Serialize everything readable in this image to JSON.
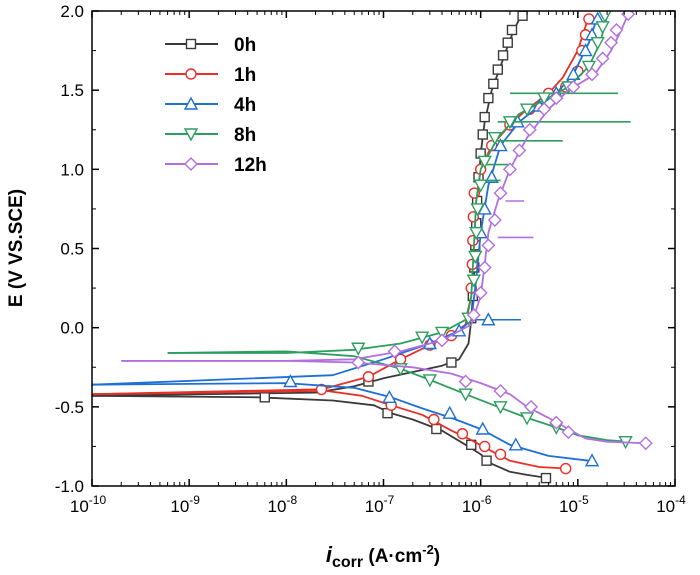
{
  "chart_data": {
    "type": "line",
    "xscale": "log",
    "xlim": [
      1e-10,
      0.0001
    ],
    "ylim": [
      -1.0,
      2.0
    ],
    "xlabel": {
      "italic": "i",
      "sub": "corr",
      "rest": " (A·cm",
      "sup": "-2",
      "end": ")"
    },
    "ylabel": "E (V VS.SCE)",
    "x_ticks": [
      {
        "value": 1e-10,
        "base": "10",
        "exp": "-10"
      },
      {
        "value": 1e-09,
        "base": "10",
        "exp": "-9"
      },
      {
        "value": 1e-08,
        "base": "10",
        "exp": "-8"
      },
      {
        "value": 1e-07,
        "base": "10",
        "exp": "-7"
      },
      {
        "value": 1e-06,
        "base": "10",
        "exp": "-6"
      },
      {
        "value": 1e-05,
        "base": "10",
        "exp": "-5"
      },
      {
        "value": 0.0001,
        "base": "10",
        "exp": "-4"
      }
    ],
    "y_ticks": [
      {
        "value": -1.0,
        "label": "-1.0"
      },
      {
        "value": -0.5,
        "label": "-0.5"
      },
      {
        "value": 0.0,
        "label": "0.0"
      },
      {
        "value": 0.5,
        "label": "0.5"
      },
      {
        "value": 1.0,
        "label": "1.0"
      },
      {
        "value": 1.5,
        "label": "1.5"
      },
      {
        "value": 2.0,
        "label": "2.0"
      }
    ],
    "legend_position": "top-left",
    "series": [
      {
        "name": "0h",
        "color": "#3a3a3a",
        "marker": "square",
        "cathodic": [
          [
            1e-10,
            -0.43
          ],
          [
            5e-09,
            -0.44
          ],
          [
            3e-08,
            -0.46
          ],
          [
            8e-08,
            -0.49
          ],
          [
            1.2e-07,
            -0.54
          ],
          [
            2e-07,
            -0.58
          ],
          [
            4e-07,
            -0.65
          ],
          [
            7e-07,
            -0.74
          ],
          [
            1e-06,
            -0.8
          ],
          [
            1.3e-06,
            -0.86
          ],
          [
            2e-06,
            -0.91
          ],
          [
            3e-06,
            -0.93
          ],
          [
            5e-06,
            -0.95
          ]
        ],
        "anodic": [
          [
            1e-10,
            -0.43
          ],
          [
            2e-08,
            -0.41
          ],
          [
            5e-08,
            -0.37
          ],
          [
            1e-07,
            -0.32
          ],
          [
            2e-07,
            -0.28
          ],
          [
            4e-07,
            -0.24
          ],
          [
            6e-07,
            -0.2
          ],
          [
            7.5e-07,
            -0.1
          ],
          [
            8e-07,
            0.05
          ],
          [
            8.5e-07,
            0.3
          ],
          [
            9e-07,
            0.6
          ],
          [
            9.5e-07,
            0.9
          ],
          [
            1e-06,
            1.1
          ],
          [
            1.1e-06,
            1.3
          ],
          [
            1.3e-06,
            1.5
          ],
          [
            1.6e-06,
            1.65
          ],
          [
            1.9e-06,
            1.78
          ],
          [
            2.2e-06,
            1.88
          ],
          [
            2.6e-06,
            1.97
          ]
        ],
        "markers": [
          [
            6e-09,
            -0.44
          ],
          [
            1.1e-07,
            -0.54
          ],
          [
            3.5e-07,
            -0.64
          ],
          [
            8e-07,
            -0.74
          ],
          [
            1.15e-06,
            -0.84
          ],
          [
            4.7e-06,
            -0.95
          ],
          [
            7e-08,
            -0.34
          ],
          [
            5e-07,
            -0.22
          ],
          [
            8e-07,
            0.06
          ],
          [
            8.3e-07,
            0.2
          ],
          [
            8.6e-07,
            0.38
          ],
          [
            8.8e-07,
            0.52
          ],
          [
            9e-07,
            0.66
          ],
          [
            9.2e-07,
            0.8
          ],
          [
            9.5e-07,
            0.95
          ],
          [
            1e-06,
            1.1
          ],
          [
            1.05e-06,
            1.22
          ],
          [
            1.1e-06,
            1.33
          ],
          [
            1.2e-06,
            1.45
          ],
          [
            1.35e-06,
            1.54
          ],
          [
            1.5e-06,
            1.63
          ],
          [
            1.7e-06,
            1.72
          ],
          [
            1.9e-06,
            1.8
          ],
          [
            2.1e-06,
            1.88
          ],
          [
            2.7e-06,
            1.97
          ]
        ],
        "spikes": []
      },
      {
        "name": "1h",
        "color": "#e8302a",
        "marker": "circle",
        "cathodic": [
          [
            1e-10,
            -0.42
          ],
          [
            2e-08,
            -0.39
          ],
          [
            6e-08,
            -0.43
          ],
          [
            1.2e-07,
            -0.49
          ],
          [
            2.5e-07,
            -0.55
          ],
          [
            5e-07,
            -0.65
          ],
          [
            8e-07,
            -0.71
          ],
          [
            1.3e-06,
            -0.78
          ],
          [
            2e-06,
            -0.84
          ],
          [
            4e-06,
            -0.88
          ],
          [
            8e-06,
            -0.89
          ]
        ],
        "anodic": [
          [
            1e-10,
            -0.42
          ],
          [
            2e-08,
            -0.4
          ],
          [
            7e-08,
            -0.31
          ],
          [
            1.5e-07,
            -0.2
          ],
          [
            3e-07,
            -0.11
          ],
          [
            5e-07,
            -0.05
          ],
          [
            7e-07,
            0.02
          ],
          [
            8e-07,
            0.2
          ],
          [
            8.5e-07,
            0.5
          ],
          [
            9e-07,
            0.8
          ],
          [
            1e-06,
            1.0
          ],
          [
            1.3e-06,
            1.15
          ],
          [
            2e-06,
            1.28
          ],
          [
            3e-06,
            1.38
          ],
          [
            5e-06,
            1.48
          ],
          [
            7e-06,
            1.58
          ],
          [
            1e-05,
            1.75
          ],
          [
            1.3e-05,
            1.97
          ]
        ],
        "markers": [
          [
            2.3e-08,
            -0.39
          ],
          [
            1.2e-07,
            -0.49
          ],
          [
            3.3e-07,
            -0.58
          ],
          [
            6.5e-07,
            -0.67
          ],
          [
            1.1e-06,
            -0.75
          ],
          [
            1.6e-06,
            -0.8
          ],
          [
            7.5e-06,
            -0.89
          ],
          [
            7e-08,
            -0.31
          ],
          [
            1.5e-07,
            -0.2
          ],
          [
            3e-07,
            -0.11
          ],
          [
            5e-07,
            -0.05
          ],
          [
            8e-07,
            0.25
          ],
          [
            8.2e-07,
            0.4
          ],
          [
            8.3e-07,
            0.55
          ],
          [
            8.4e-07,
            0.7
          ],
          [
            8.6e-07,
            0.85
          ],
          [
            1e-06,
            1.0
          ],
          [
            1.3e-06,
            1.15
          ],
          [
            2e-06,
            1.28
          ],
          [
            3.2e-06,
            1.38
          ],
          [
            5e-06,
            1.48
          ],
          [
            7.5e-06,
            1.52
          ],
          [
            1e-05,
            1.62
          ],
          [
            1.1e-05,
            1.75
          ],
          [
            1.2e-05,
            1.85
          ],
          [
            1.3e-05,
            1.95
          ]
        ],
        "spikes": []
      },
      {
        "name": "4h",
        "color": "#1e6fd6",
        "marker": "triangle-up",
        "cathodic": [
          [
            1e-10,
            -0.36
          ],
          [
            1e-08,
            -0.35
          ],
          [
            5e-08,
            -0.38
          ],
          [
            1.2e-07,
            -0.44
          ],
          [
            2.5e-07,
            -0.51
          ],
          [
            5e-07,
            -0.57
          ],
          [
            1e-06,
            -0.64
          ],
          [
            2e-06,
            -0.74
          ],
          [
            5e-06,
            -0.81
          ],
          [
            1.3e-05,
            -0.84
          ]
        ],
        "anodic": [
          [
            1e-10,
            -0.36
          ],
          [
            3e-08,
            -0.3
          ],
          [
            1e-07,
            -0.2
          ],
          [
            3e-07,
            -0.1
          ],
          [
            6e-07,
            -0.02
          ],
          [
            8e-07,
            0.05
          ],
          [
            9e-07,
            0.3
          ],
          [
            1e-06,
            0.6
          ],
          [
            1.2e-06,
            0.9
          ],
          [
            1.6e-06,
            1.15
          ],
          [
            2.5e-06,
            1.3
          ],
          [
            4e-06,
            1.4
          ],
          [
            6e-06,
            1.48
          ],
          [
            9e-06,
            1.6
          ],
          [
            1.3e-05,
            1.8
          ],
          [
            1.6e-05,
            1.97
          ]
        ],
        "markers": [
          [
            1.1e-08,
            -0.34
          ],
          [
            1.15e-07,
            -0.44
          ],
          [
            4.8e-07,
            -0.54
          ],
          [
            1.05e-06,
            -0.64
          ],
          [
            2.3e-06,
            -0.74
          ],
          [
            1.4e-05,
            -0.84
          ],
          [
            3e-07,
            -0.1
          ],
          [
            6e-07,
            -0.02
          ],
          [
            1.2e-06,
            0.05
          ],
          [
            1e-06,
            0.6
          ],
          [
            1.1e-06,
            0.75
          ],
          [
            1.3e-06,
            0.95
          ],
          [
            1.6e-06,
            1.15
          ],
          [
            2.4e-06,
            1.3
          ],
          [
            4e-06,
            1.4
          ],
          [
            6e-06,
            1.48
          ],
          [
            9e-06,
            1.6
          ],
          [
            1.2e-05,
            1.75
          ],
          [
            1.4e-05,
            1.85
          ],
          [
            1.6e-05,
            1.95
          ]
        ],
        "spikes": [
          [
            9e-07,
            2.6e-06,
            0.05
          ]
        ]
      },
      {
        "name": "8h",
        "color": "#2e9e5e",
        "marker": "triangle-down",
        "cathodic": [
          [
            6e-10,
            -0.16
          ],
          [
            1e-08,
            -0.15
          ],
          [
            5e-08,
            -0.18
          ],
          [
            1.5e-07,
            -0.26
          ],
          [
            3e-07,
            -0.33
          ],
          [
            7e-07,
            -0.42
          ],
          [
            1.5e-06,
            -0.5
          ],
          [
            3e-06,
            -0.57
          ],
          [
            6e-06,
            -0.63
          ],
          [
            1e-05,
            -0.68
          ],
          [
            2e-05,
            -0.71
          ],
          [
            3.2e-05,
            -0.72
          ]
        ],
        "anodic": [
          [
            6e-10,
            -0.16
          ],
          [
            1e-08,
            -0.16
          ],
          [
            5e-08,
            -0.14
          ],
          [
            1.5e-07,
            -0.1
          ],
          [
            4e-07,
            -0.03
          ],
          [
            7e-07,
            0.05
          ],
          [
            8e-07,
            0.2
          ],
          [
            8.5e-07,
            0.5
          ],
          [
            9e-07,
            0.8
          ],
          [
            1e-06,
            1.0
          ],
          [
            1.5e-06,
            1.2
          ],
          [
            2.5e-06,
            1.35
          ],
          [
            4e-06,
            1.42
          ],
          [
            8e-06,
            1.52
          ],
          [
            1.3e-05,
            1.65
          ],
          [
            1.7e-05,
            1.8
          ],
          [
            2e-05,
            1.97
          ]
        ],
        "markers": [
          [
            5.5e-08,
            -0.13
          ],
          [
            1.5e-07,
            -0.26
          ],
          [
            3e-07,
            -0.33
          ],
          [
            7e-07,
            -0.42
          ],
          [
            1.6e-06,
            -0.5
          ],
          [
            3e-06,
            -0.57
          ],
          [
            6e-06,
            -0.63
          ],
          [
            3.1e-05,
            -0.72
          ],
          [
            2.5e-07,
            -0.06
          ],
          [
            4e-07,
            -0.03
          ],
          [
            7.5e-07,
            0.06
          ],
          [
            8.5e-07,
            0.3
          ],
          [
            8.8e-07,
            0.45
          ],
          [
            9e-07,
            0.6
          ],
          [
            9.3e-07,
            0.75
          ],
          [
            1e-06,
            0.9
          ],
          [
            1.1e-06,
            1.05
          ],
          [
            1.4e-06,
            1.2
          ],
          [
            2e-06,
            1.3
          ],
          [
            3e-06,
            1.38
          ],
          [
            4.5e-06,
            1.45
          ],
          [
            8e-06,
            1.52
          ],
          [
            1.3e-05,
            1.65
          ],
          [
            1.6e-05,
            1.8
          ],
          [
            1.8e-05,
            1.9
          ],
          [
            1.9e-05,
            1.97
          ]
        ],
        "spikes": [
          [
            1.5e-06,
            3.5e-05,
            1.3
          ],
          [
            2e-06,
            2.6e-05,
            1.48
          ],
          [
            1.3e-06,
            7e-06,
            1.18
          ],
          [
            1e-06,
            2e-06,
            1.03
          ],
          [
            8.7e-07,
            1.6e-06,
            0.93
          ]
        ]
      },
      {
        "name": "12h",
        "color": "#b36fe0",
        "marker": "diamond",
        "cathodic": [
          [
            2e-10,
            -0.21
          ],
          [
            1e-08,
            -0.21
          ],
          [
            5e-08,
            -0.22
          ],
          [
            2e-07,
            -0.25
          ],
          [
            5e-07,
            -0.29
          ],
          [
            1e-06,
            -0.35
          ],
          [
            2e-06,
            -0.42
          ],
          [
            3e-06,
            -0.5
          ],
          [
            5e-06,
            -0.57
          ],
          [
            8e-06,
            -0.64
          ],
          [
            1.2e-05,
            -0.7
          ],
          [
            2e-05,
            -0.72
          ],
          [
            5e-05,
            -0.73
          ]
        ],
        "anodic": [
          [
            2e-10,
            -0.21
          ],
          [
            1e-08,
            -0.21
          ],
          [
            5e-08,
            -0.2
          ],
          [
            1.5e-07,
            -0.15
          ],
          [
            4e-07,
            -0.08
          ],
          [
            8e-07,
            0.02
          ],
          [
            1e-06,
            0.2
          ],
          [
            1.1e-06,
            0.4
          ],
          [
            1.2e-06,
            0.6
          ],
          [
            1.5e-06,
            0.8
          ],
          [
            2e-06,
            1.0
          ],
          [
            3e-06,
            1.2
          ],
          [
            5e-06,
            1.38
          ],
          [
            8e-06,
            1.5
          ],
          [
            1.5e-05,
            1.6
          ],
          [
            2.2e-05,
            1.75
          ],
          [
            2.8e-05,
            1.88
          ],
          [
            3.3e-05,
            1.98
          ]
        ],
        "markers": [
          [
            5.5e-08,
            -0.22
          ],
          [
            7e-07,
            -0.34
          ],
          [
            1.6e-06,
            -0.4
          ],
          [
            3.3e-06,
            -0.5
          ],
          [
            6e-06,
            -0.6
          ],
          [
            8e-06,
            -0.66
          ],
          [
            5e-05,
            -0.73
          ],
          [
            1.3e-07,
            -0.15
          ],
          [
            4e-07,
            -0.08
          ],
          [
            8.5e-07,
            0.08
          ],
          [
            1e-06,
            0.22
          ],
          [
            1.1e-06,
            0.38
          ],
          [
            1.2e-06,
            0.52
          ],
          [
            1.4e-06,
            0.68
          ],
          [
            1.6e-06,
            0.85
          ],
          [
            2e-06,
            1.0
          ],
          [
            2.5e-06,
            1.12
          ],
          [
            3.2e-06,
            1.25
          ],
          [
            4.5e-06,
            1.38
          ],
          [
            6e-06,
            1.45
          ],
          [
            9e-06,
            1.52
          ],
          [
            1.4e-05,
            1.6
          ],
          [
            1.8e-05,
            1.7
          ],
          [
            2.2e-05,
            1.8
          ],
          [
            2.5e-05,
            1.88
          ],
          [
            3.3e-05,
            1.98
          ]
        ],
        "spikes": [
          [
            1.5e-06,
            3.5e-06,
            0.57
          ],
          [
            1.8e-06,
            2.8e-06,
            0.8
          ]
        ]
      }
    ]
  }
}
